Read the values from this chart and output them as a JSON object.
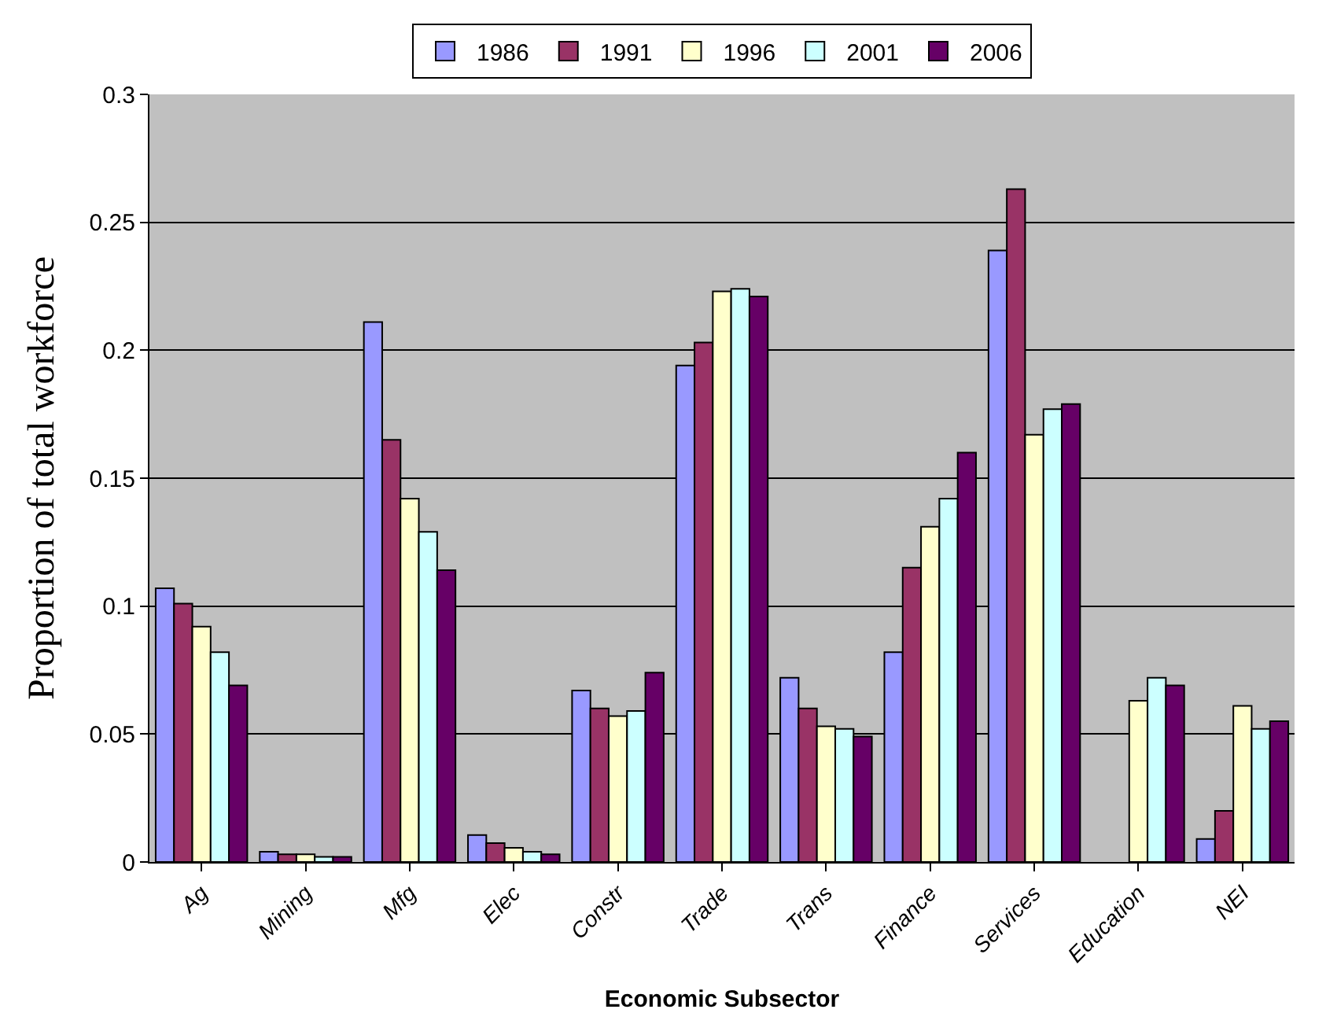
{
  "chart_data": {
    "type": "bar",
    "xlabel": "Economic Subsector",
    "ylabel": "Proportion of total workforce",
    "categories": [
      "Ag",
      "Mining",
      "Mfg",
      "Elec",
      "Constr",
      "Trade",
      "Trans",
      "Finance",
      "Services",
      "Education",
      "NEI"
    ],
    "series": [
      {
        "name": "1986",
        "color": "#9999ff",
        "values": [
          0.107,
          0.004,
          0.211,
          0.0105,
          0.067,
          0.194,
          0.072,
          0.082,
          0.239,
          null,
          0.009
        ]
      },
      {
        "name": "1991",
        "color": "#993366",
        "values": [
          0.101,
          0.003,
          0.165,
          0.0074,
          0.06,
          0.203,
          0.06,
          0.115,
          0.263,
          null,
          0.02
        ]
      },
      {
        "name": "1996",
        "color": "#ffffcc",
        "values": [
          0.092,
          0.003,
          0.142,
          0.0055,
          0.057,
          0.223,
          0.053,
          0.131,
          0.167,
          0.063,
          0.061
        ]
      },
      {
        "name": "2001",
        "color": "#ccffff",
        "values": [
          0.082,
          0.002,
          0.129,
          0.004,
          0.059,
          0.224,
          0.052,
          0.142,
          0.177,
          0.072,
          0.052
        ]
      },
      {
        "name": "2006",
        "color": "#660066",
        "values": [
          0.069,
          0.002,
          0.114,
          0.003,
          0.074,
          0.221,
          0.049,
          0.16,
          0.179,
          0.069,
          0.055
        ]
      }
    ],
    "ylim": [
      0,
      0.3
    ],
    "yticks": [
      0,
      0.05,
      0.1,
      0.15,
      0.2,
      0.25,
      0.3
    ],
    "grid": "y",
    "legend": "top"
  }
}
